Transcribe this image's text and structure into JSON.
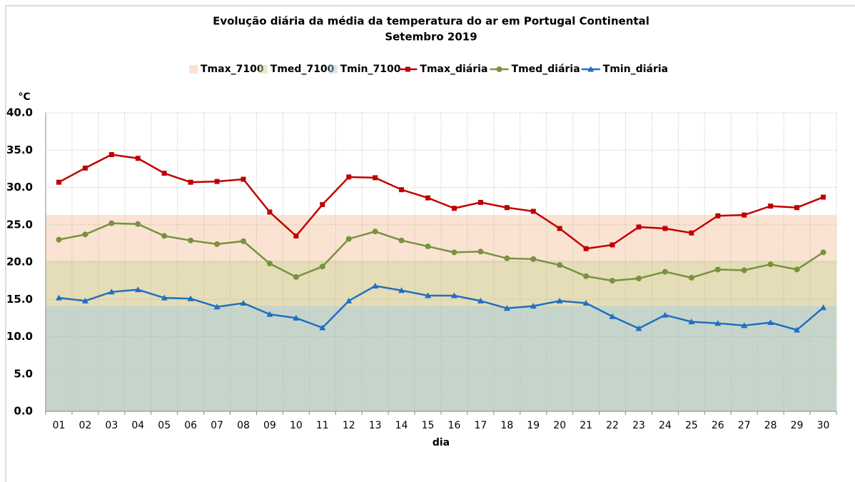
{
  "chart_data": {
    "type": "line",
    "title": "Evolução diária da média da temperatura do ar em Portugal Continental",
    "subtitle": "Setembro 2019",
    "y_label": "°C",
    "x_label": "dia",
    "categories": [
      "01",
      "02",
      "03",
      "04",
      "05",
      "06",
      "07",
      "08",
      "09",
      "10",
      "11",
      "12",
      "13",
      "14",
      "15",
      "16",
      "17",
      "18",
      "19",
      "20",
      "21",
      "22",
      "23",
      "24",
      "25",
      "26",
      "27",
      "28",
      "29",
      "30"
    ],
    "areas": [
      {
        "name": "Tmax_7100",
        "color": "#f6c7a8",
        "values": [
          26.3,
          26.3,
          26.3,
          26.3,
          26.3,
          26.3,
          26.3,
          26.3,
          26.3,
          26.3,
          26.3,
          26.3,
          26.3,
          26.3,
          26.3,
          26.3,
          26.3,
          26.3,
          26.3,
          26.3,
          26.3,
          26.3,
          26.3,
          26.3,
          26.3,
          26.3,
          26.3,
          26.3,
          26.3,
          26.3
        ]
      },
      {
        "name": "Tmed_7100",
        "color": "#cfd69e",
        "values": [
          20.2,
          20.2,
          20.2,
          20.2,
          20.2,
          20.2,
          20.2,
          20.2,
          20.2,
          20.2,
          20.2,
          20.2,
          20.2,
          20.2,
          20.2,
          20.2,
          20.2,
          20.2,
          20.2,
          20.2,
          20.2,
          20.2,
          20.2,
          20.2,
          20.2,
          20.2,
          20.2,
          20.2,
          20.2,
          20.2
        ]
      },
      {
        "name": "Tmin_7100",
        "color": "#a8cedf",
        "values": [
          14.1,
          14.1,
          14.1,
          14.1,
          14.1,
          14.1,
          14.1,
          14.1,
          14.1,
          14.1,
          14.1,
          14.1,
          14.1,
          14.1,
          14.1,
          14.1,
          14.1,
          14.1,
          14.1,
          14.1,
          14.1,
          14.1,
          14.1,
          14.1,
          14.1,
          14.1,
          14.1,
          14.1,
          14.1,
          14.1
        ]
      }
    ],
    "series": [
      {
        "name": "Tmax_diária",
        "color": "#c00000",
        "marker": "square",
        "values": [
          30.7,
          32.6,
          34.4,
          33.9,
          31.9,
          30.7,
          30.8,
          31.1,
          26.7,
          23.5,
          27.7,
          31.4,
          31.3,
          29.7,
          28.6,
          27.2,
          28.0,
          27.3,
          26.8,
          24.5,
          21.8,
          22.3,
          24.7,
          24.5,
          23.9,
          26.2,
          26.3,
          27.5,
          27.3,
          28.7
        ]
      },
      {
        "name": "Tmed_diária",
        "color": "#77933c",
        "marker": "circle",
        "values": [
          23.0,
          23.7,
          25.2,
          25.1,
          23.5,
          22.9,
          22.4,
          22.8,
          19.8,
          18.0,
          19.4,
          23.1,
          24.1,
          22.9,
          22.1,
          21.3,
          21.4,
          20.5,
          20.4,
          19.6,
          18.1,
          17.5,
          17.8,
          18.7,
          17.9,
          19.0,
          18.9,
          19.7,
          19.0,
          21.3
        ]
      },
      {
        "name": "Tmin_diária",
        "color": "#1f6fbf",
        "marker": "triangle",
        "values": [
          15.2,
          14.8,
          16.0,
          16.3,
          15.2,
          15.1,
          14.0,
          14.5,
          13.0,
          12.5,
          11.2,
          14.8,
          16.8,
          16.2,
          15.5,
          15.5,
          14.8,
          13.8,
          14.1,
          14.8,
          14.5,
          12.7,
          11.1,
          12.9,
          12.0,
          11.8,
          11.5,
          11.9,
          10.9,
          13.9
        ]
      }
    ],
    "ylim": [
      0,
      40
    ],
    "yticks": [
      {
        "value": 0,
        "label": "0.0"
      },
      {
        "value": 5,
        "label": "5.0"
      },
      {
        "value": 10,
        "label": "10.0"
      },
      {
        "value": 15,
        "label": "15.0"
      },
      {
        "value": 20,
        "label": "20.0"
      },
      {
        "value": 25,
        "label": "25.0"
      },
      {
        "value": 30,
        "label": "30.0"
      },
      {
        "value": 35,
        "label": "35.0"
      },
      {
        "value": 40,
        "label": "40.0"
      }
    ],
    "grid": true
  }
}
